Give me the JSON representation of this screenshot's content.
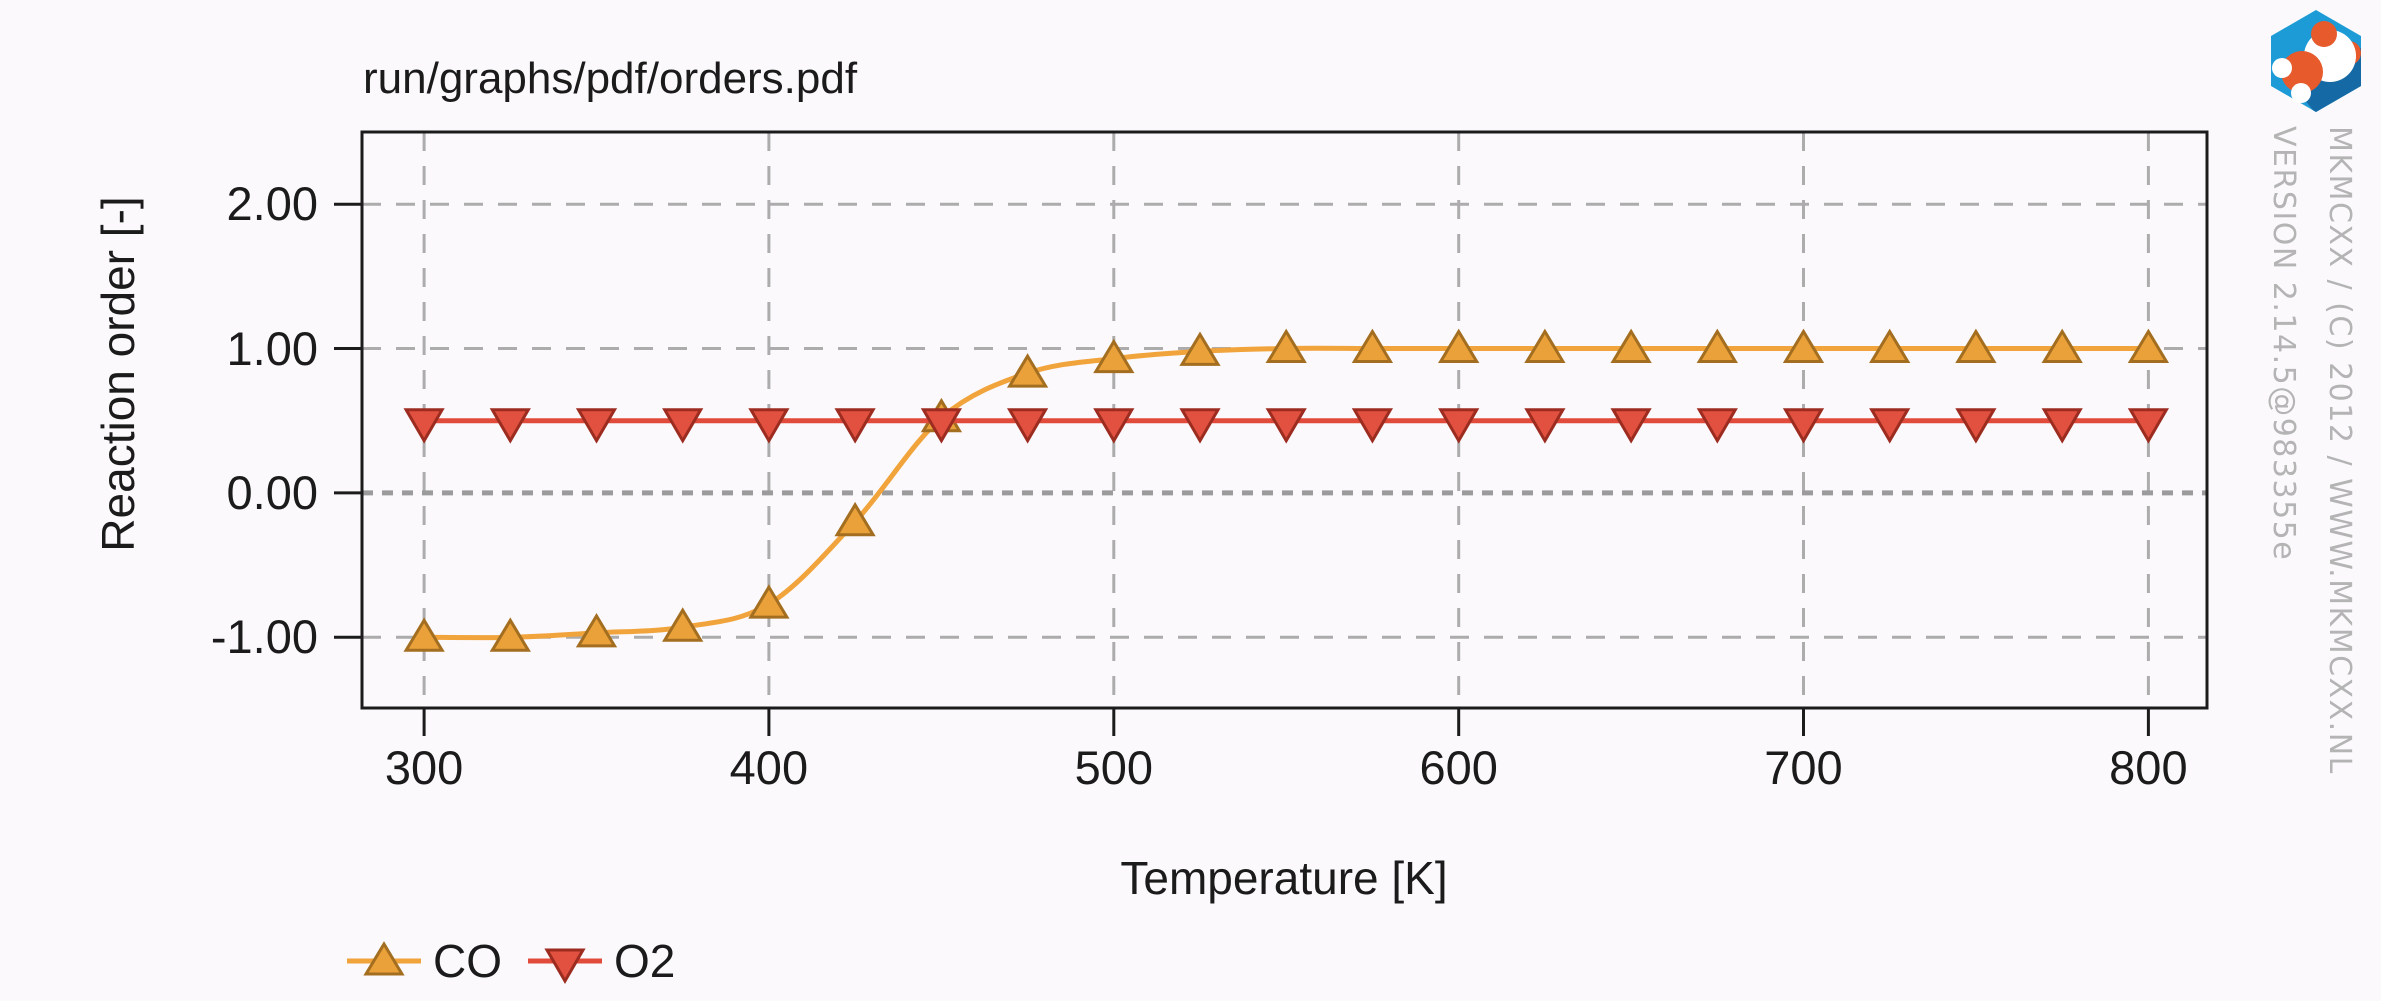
{
  "watermark": {
    "line1": "MKMCXX / (C) 2012 / WWW.MKMCXX.NL",
    "line2": "VERSION 2.14.5@983355e"
  },
  "logo": {
    "blue": "#1c9bd6",
    "dark_blue": "#156aa5",
    "orange": "#e65a2b",
    "white": "#ffffff"
  },
  "style": {
    "background": "#fbf9fc",
    "axis_color": "#1b1b1b",
    "text_color": "#1b1b1b",
    "grid_color": "#acacac",
    "zero_grid_color": "#9b9b9b",
    "watermark_color": "#b4b4b4"
  },
  "chart_data": {
    "type": "line",
    "title": "run/graphs/pdf/orders.pdf",
    "xlabel": "Temperature [K]",
    "ylabel": "Reaction order [-]",
    "grid": true,
    "legend_position": "bottom-left",
    "xlim": [
      282,
      817
    ],
    "ylim": [
      -1.49,
      2.5
    ],
    "x_ticks": [
      300,
      400,
      500,
      600,
      700,
      800
    ],
    "y_ticks": [
      "2.00",
      "1.00",
      "0.00",
      "-1.00"
    ],
    "y_tick_values": [
      2,
      1,
      0,
      -1
    ],
    "x": [
      300,
      325,
      350,
      375,
      400,
      425,
      450,
      475,
      500,
      525,
      550,
      575,
      600,
      625,
      650,
      675,
      700,
      725,
      750,
      775,
      800
    ],
    "series": [
      {
        "name": "CO",
        "marker": "triangle-up",
        "line_color": "#f1a43b",
        "marker_fill": "#eba13a",
        "marker_edge": "#a36e20",
        "values": [
          -1.0,
          -1.0,
          -0.97,
          -0.93,
          -0.77,
          -0.2,
          0.52,
          0.83,
          0.93,
          0.98,
          1.0,
          1.0,
          1.0,
          1.0,
          1.0,
          1.0,
          1.0,
          1.0,
          1.0,
          1.0,
          1.0
        ]
      },
      {
        "name": "O2",
        "marker": "triangle-down",
        "line_color": "#e14b3b",
        "marker_fill": "#e2503f",
        "marker_edge": "#9c2c20",
        "values": [
          0.5,
          0.5,
          0.5,
          0.5,
          0.5,
          0.5,
          0.5,
          0.5,
          0.5,
          0.5,
          0.5,
          0.5,
          0.5,
          0.5,
          0.5,
          0.5,
          0.5,
          0.5,
          0.5,
          0.5,
          0.5
        ]
      }
    ]
  }
}
